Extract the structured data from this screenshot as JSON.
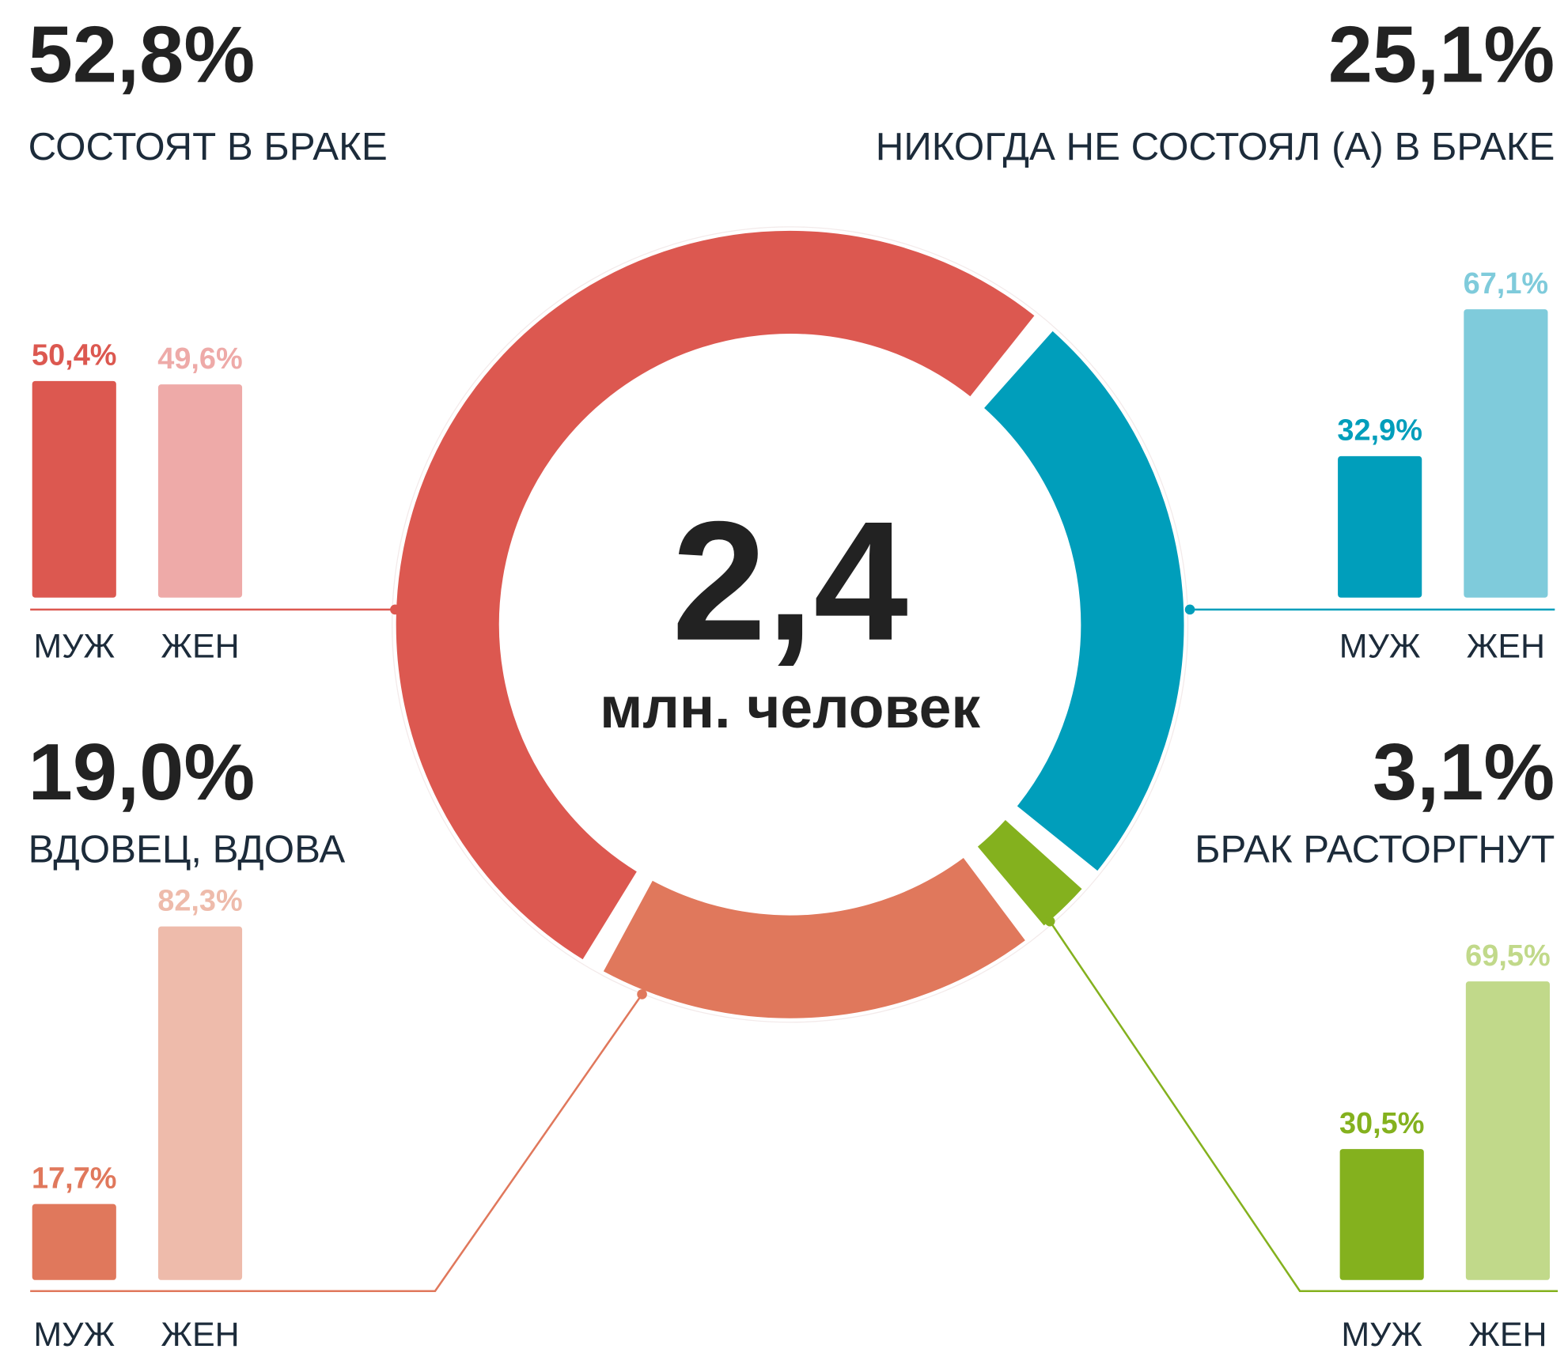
{
  "chart_data": [
    {
      "type": "donut",
      "center_value": "2,4",
      "center_label": "млн. человек",
      "categories": [
        "СОСТОЯТ В БРАКЕ",
        "НИКОГДА НЕ СОСТОЯЛ (А) В БРАКЕ",
        "БРАК РАСТОРГНУТ",
        "ВДОВЕЦ, ВДОВА"
      ],
      "values": [
        52.8,
        25.1,
        3.1,
        19.0
      ],
      "value_labels": [
        "52,8%",
        "25,1%",
        "3,1%",
        "19,0%"
      ],
      "colors": [
        "#dc5850",
        "#009ebb",
        "#84b11e",
        "#e0785c"
      ]
    },
    {
      "type": "bar",
      "categories": [
        "МУЖ",
        "ЖЕН"
      ],
      "values": [
        50.4,
        49.6
      ],
      "value_labels": [
        "50,4%",
        "49,6%"
      ],
      "colors": [
        "#dc5850",
        "#eeaaa8"
      ]
    },
    {
      "type": "bar",
      "categories": [
        "МУЖ",
        "ЖЕН"
      ],
      "values": [
        32.9,
        67.1
      ],
      "value_labels": [
        "32,9%",
        "67,1%"
      ],
      "colors": [
        "#009ebb",
        "#7fcbdb"
      ]
    },
    {
      "type": "bar",
      "categories": [
        "МУЖ",
        "ЖЕН"
      ],
      "values": [
        30.5,
        69.5
      ],
      "value_labels": [
        "30,5%",
        "69,5%"
      ],
      "colors": [
        "#84b11e",
        "#c1d98a"
      ]
    },
    {
      "type": "bar",
      "categories": [
        "МУЖ",
        "ЖЕН"
      ],
      "values": [
        17.7,
        82.3
      ],
      "value_labels": [
        "17,7%",
        "82,3%"
      ],
      "colors": [
        "#e0785c",
        "#eebbab"
      ]
    }
  ]
}
